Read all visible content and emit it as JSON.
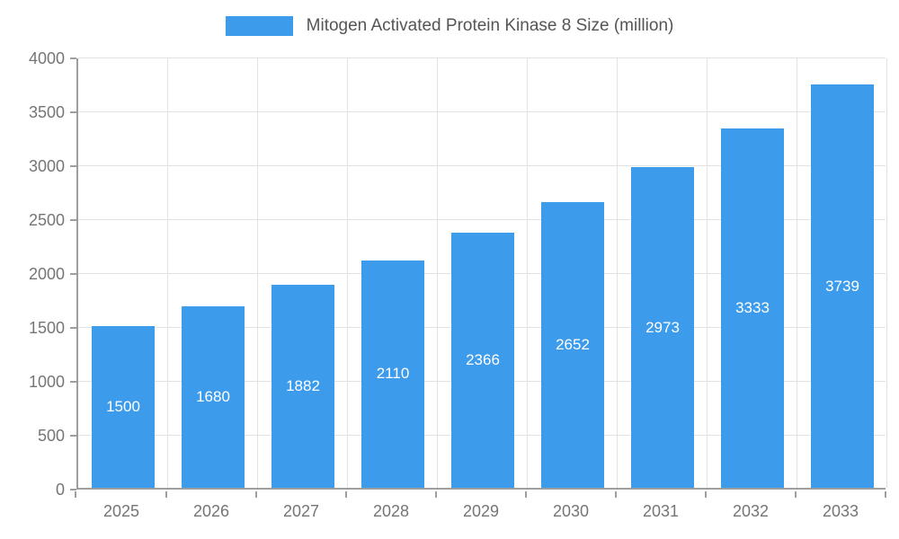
{
  "chart_data": {
    "type": "bar",
    "title": "Mitogen Activated Protein Kinase 8 Size (million)",
    "categories": [
      "2025",
      "2026",
      "2027",
      "2028",
      "2029",
      "2030",
      "2031",
      "2032",
      "2033"
    ],
    "values": [
      1500,
      1680,
      1882,
      2110,
      2366,
      2652,
      2973,
      3333,
      3739
    ],
    "xlabel": "",
    "ylabel": "",
    "ylim": [
      0,
      4000
    ],
    "yticks": [
      0,
      500,
      1000,
      1500,
      2000,
      2500,
      3000,
      3500,
      4000
    ],
    "grid": true,
    "legend_position": "top",
    "bar_color": "#3D9BEC",
    "bar_value_label_color": "#ffffff",
    "axis_text_color": "#757575",
    "legend_text_color": "#555555",
    "gridline_color": "#e2e2e2",
    "axis_line_color": "#9e9e9e"
  }
}
